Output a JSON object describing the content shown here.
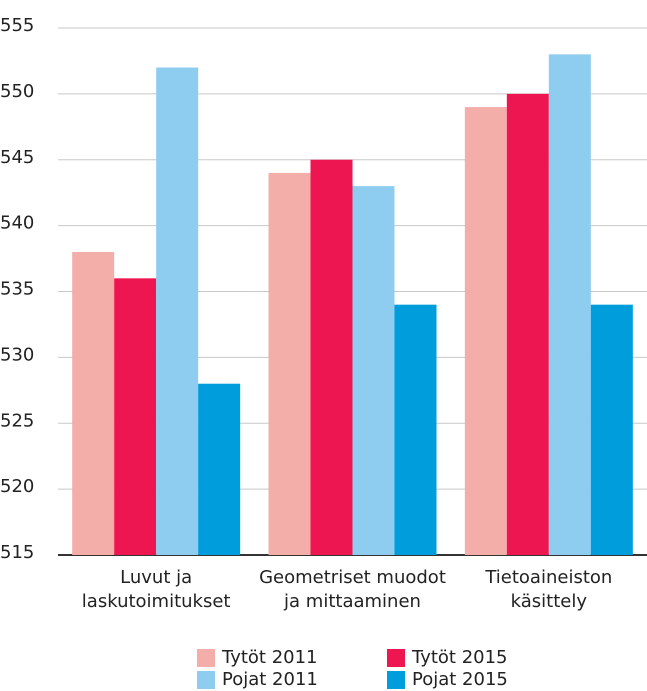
{
  "chart_data": {
    "type": "bar",
    "categories": [
      "Luvut ja\nlaskutoimitukset",
      "Geometriset muodot\nja mittaaminen",
      "Tietoaineiston\nkäsittely"
    ],
    "series": [
      {
        "name": "Tytöt 2011",
        "color": "#f4aeaa",
        "values": [
          538,
          544,
          549
        ]
      },
      {
        "name": "Tytöt 2015",
        "color": "#ee1651",
        "values": [
          536,
          545,
          550
        ]
      },
      {
        "name": "Pojat 2011",
        "color": "#8fcdf0",
        "values": [
          552,
          543,
          553
        ]
      },
      {
        "name": "Pojat 2015",
        "color": "#009ddc",
        "values": [
          528,
          534,
          534
        ]
      }
    ],
    "ylim": [
      515,
      555
    ],
    "yticks": [
      515,
      520,
      525,
      530,
      535,
      540,
      545,
      550,
      555
    ],
    "grid": true
  }
}
